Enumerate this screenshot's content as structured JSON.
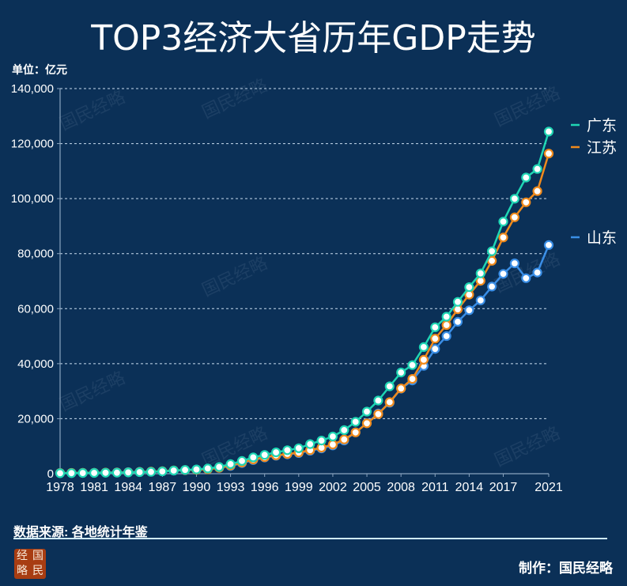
{
  "title": "TOP3经济大省历年GDP走势",
  "unit_label": "单位：亿元",
  "source_label": "数据来源: 各地统计年鉴",
  "maker_label": "制作：国民经略",
  "logo_chars": [
    "经",
    "国",
    "略",
    "民"
  ],
  "watermark_text": "国民经略",
  "chart_data": {
    "type": "line",
    "title": "TOP3经济大省历年GDP走势",
    "xlabel": "",
    "ylabel": "单位：亿元",
    "ylim": [
      0,
      140000
    ],
    "yticks": [
      0,
      20000,
      40000,
      60000,
      80000,
      100000,
      120000,
      140000
    ],
    "ytick_labels": [
      "0",
      "20,000",
      "40,000",
      "60,000",
      "80,000",
      "100,000",
      "120,000",
      "140,000"
    ],
    "xtick_labels": [
      "1978",
      "1981",
      "1984",
      "1987",
      "1990",
      "1993",
      "1996",
      "1999",
      "2002",
      "2005",
      "2008",
      "2011",
      "2014",
      "2017",
      "2021"
    ],
    "grid": true,
    "legend_position": "right",
    "x": [
      1978,
      1979,
      1980,
      1981,
      1982,
      1983,
      1984,
      1985,
      1986,
      1987,
      1988,
      1989,
      1990,
      1991,
      1992,
      1993,
      1994,
      1995,
      1996,
      1997,
      1998,
      1999,
      2000,
      2001,
      2002,
      2003,
      2004,
      2005,
      2006,
      2007,
      2008,
      2009,
      2010,
      2011,
      2012,
      2013,
      2014,
      2015,
      2016,
      2017,
      2018,
      2019,
      2020,
      2021
    ],
    "series": [
      {
        "name": "广东",
        "color": "#1fd6b4",
        "values": [
          186,
          209,
          250,
          290,
          340,
          368,
          459,
          578,
          668,
          847,
          1155,
          1381,
          1559,
          1893,
          2448,
          3469,
          4619,
          5934,
          6835,
          7775,
          8531,
          9250,
          10741,
          12039,
          13502,
          15845,
          18865,
          22557,
          26588,
          31777,
          36797,
          39483,
          46036,
          53210,
          57068,
          62475,
          67810,
          72813,
          80855,
          91649,
          99945,
          107671,
          110761,
          124370
        ]
      },
      {
        "name": "江苏",
        "color": "#f08a1c",
        "values": [
          249,
          298,
          320,
          350,
          390,
          438,
          518,
          652,
          744,
          923,
          1209,
          1322,
          1417,
          1601,
          2136,
          2998,
          4057,
          5155,
          6004,
          6680,
          7200,
          7698,
          8554,
          9457,
          10607,
          12443,
          15004,
          18306,
          21646,
          26018,
          30982,
          34457,
          41425,
          49110,
          54058,
          59753,
          65088,
          70116,
          77388,
          85870,
          93208,
          98656,
          102719,
          116364
        ]
      },
      {
        "name": "山东",
        "color": "#3a8ee6",
        "values": [
          225,
          251,
          292,
          346,
          395,
          459,
          582,
          681,
          742,
          892,
          1118,
          1293,
          1511,
          1810,
          2197,
          2779,
          3844,
          4953,
          5884,
          6537,
          7021,
          7494,
          8338,
          9195,
          10275,
          12078,
          15021,
          18367,
          21900,
          25776,
          30933,
          33897,
          39170,
          45361,
          50013,
          55230,
          59427,
          63002,
          68024,
          72634,
          76470,
          71068,
          73129,
          83096
        ]
      }
    ]
  }
}
